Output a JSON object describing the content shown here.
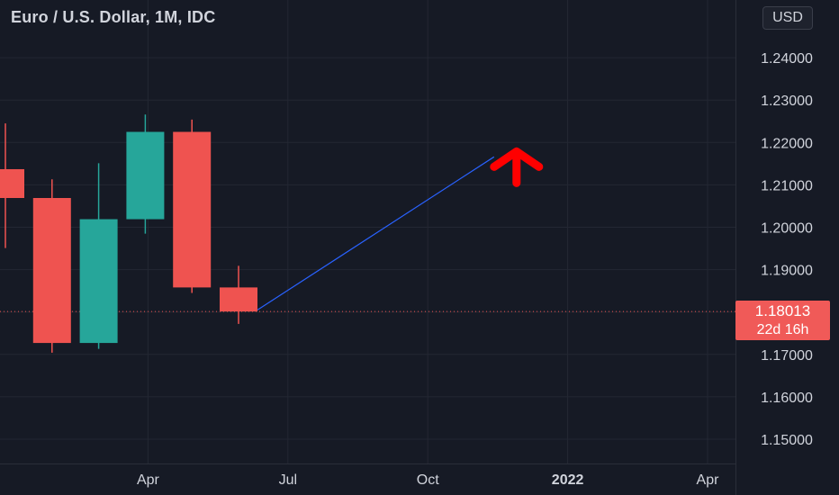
{
  "header": {
    "symbol_title": "Euro / U.S. Dollar, 1M, IDC",
    "currency": "USD"
  },
  "price_tag": {
    "price": "1.18013",
    "countdown": "22d 16h"
  },
  "colors": {
    "background": "#161a25",
    "grid": "#232733",
    "axis_text": "#d1d4dc",
    "up": "#26a69a",
    "down": "#ef5350",
    "trend_line": "#2962ff",
    "arrow": "#ff0000",
    "price_line": "#ef5350"
  },
  "chart_data": {
    "type": "candlestick",
    "title": "Euro / U.S. Dollar, 1M, IDC",
    "interval": "1M",
    "x_tick_labels": [
      "Apr",
      "Jul",
      "Oct",
      "2022",
      "Apr"
    ],
    "y_tick_labels": [
      "1.15000",
      "1.16000",
      "1.17000",
      "1.18000",
      "1.19000",
      "1.20000",
      "1.21000",
      "1.22000",
      "1.23000",
      "1.24000"
    ],
    "y_range": [
      1.1455,
      1.2495
    ],
    "last_price": 1.18013,
    "grid": true,
    "candles": [
      {
        "month": "2021-01",
        "open": 1.2137,
        "high": 1.2245,
        "low": 1.1951,
        "close": 1.2069
      },
      {
        "month": "2021-02",
        "open": 1.2069,
        "high": 1.2113,
        "low": 1.1704,
        "close": 1.1727
      },
      {
        "month": "2021-03",
        "open": 1.1727,
        "high": 1.2151,
        "low": 1.1713,
        "close": 1.2019
      },
      {
        "month": "2021-04",
        "open": 1.2019,
        "high": 1.2266,
        "low": 1.1985,
        "close": 1.2225
      },
      {
        "month": "2021-05",
        "open": 1.2225,
        "high": 1.2254,
        "low": 1.1845,
        "close": 1.1858
      },
      {
        "month": "2021-06",
        "open": 1.1858,
        "high": 1.1909,
        "low": 1.1772,
        "close": 1.18013
      }
    ],
    "annotations": [
      {
        "type": "trend_line",
        "from": {
          "month": "2021-06",
          "value": 1.1805
        },
        "to": {
          "month": "2021-12",
          "value": 1.2166
        }
      },
      {
        "type": "arrow_up",
        "month": "2021-12",
        "value": 1.2185
      }
    ]
  }
}
